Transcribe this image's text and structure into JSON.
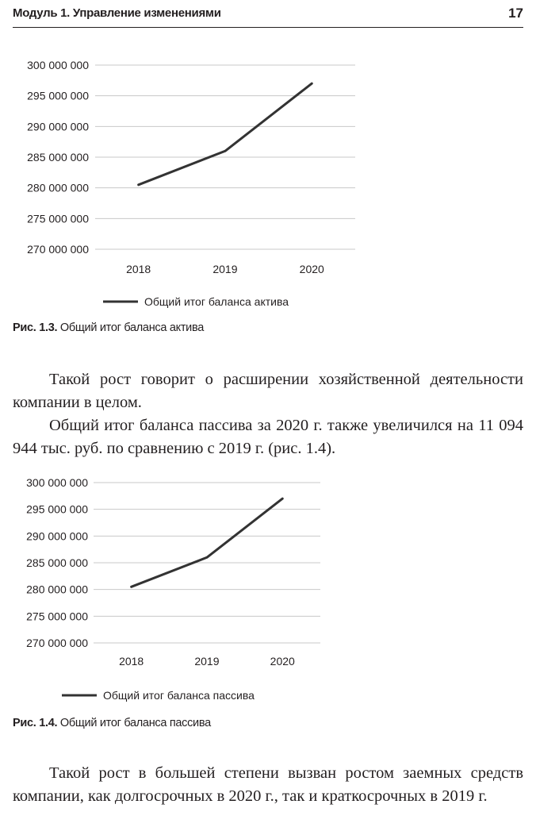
{
  "header": {
    "running_head": "Модуль 1. Управление изменениями",
    "page_number": "17"
  },
  "chart_data": [
    {
      "type": "line",
      "categories": [
        "2018",
        "2019",
        "2020"
      ],
      "y_ticks": [
        "300 000 000",
        "295 000 000",
        "290 000 000",
        "285 000 000",
        "280 000 000",
        "275 000 000",
        "270 000 000"
      ],
      "ylim": [
        270000000,
        300000000
      ],
      "series": [
        {
          "name": "Общий итог баланса актива",
          "values": [
            280500000,
            286000000,
            297000000
          ]
        }
      ],
      "legend": "bottom-center",
      "grid": true,
      "color": "#333333"
    },
    {
      "type": "line",
      "categories": [
        "2018",
        "2019",
        "2020"
      ],
      "y_ticks": [
        "300 000 000",
        "295 000 000",
        "290 000 000",
        "285 000 000",
        "280 000 000",
        "275 000 000",
        "270 000 000"
      ],
      "ylim": [
        270000000,
        300000000
      ],
      "series": [
        {
          "name": "Общий итог баланса пассива",
          "values": [
            280500000,
            286000000,
            297000000
          ]
        }
      ],
      "legend": "bottom-center",
      "grid": true,
      "color": "#333333"
    }
  ],
  "captions": [
    {
      "label": "Рис. 1.3.",
      "text": " Общий итог баланса актива"
    },
    {
      "label": "Рис. 1.4.",
      "text": " Общий итог баланса пассива"
    }
  ],
  "paragraphs": {
    "p1": "Такой рост говорит о расширении хозяйственной деятельности компании в целом.",
    "p2": "Общий итог баланса пассива за 2020 г. также увеличился на 11 094 944 тыс. руб. по сравнению с 2019 г. (рис. 1.4).",
    "p3": "Такой рост в большей степени вызван ростом заемных средств компании, как долгосрочных в 2020 г., так и краткосрочных в 2019 г."
  }
}
